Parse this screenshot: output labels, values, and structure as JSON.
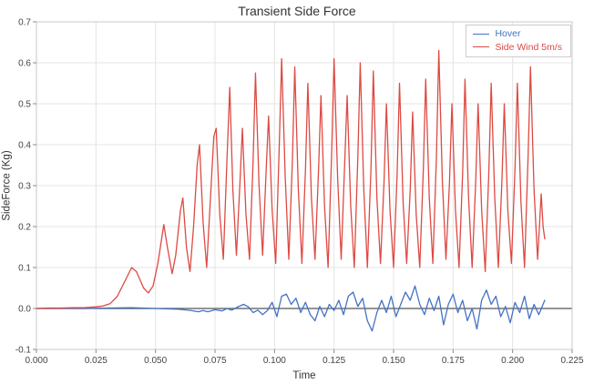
{
  "chart_data": {
    "type": "line",
    "title": "Transient Side Force",
    "xlabel": "Time",
    "ylabel": "SideForce (Kg)",
    "xlim": [
      0,
      0.225
    ],
    "ylim": [
      -0.1,
      0.7
    ],
    "grid": true,
    "zero_line": true,
    "legend_position": "top-right",
    "xticks": [
      0,
      0.025,
      0.05,
      0.075,
      0.1,
      0.125,
      0.15,
      0.175,
      0.2,
      0.225
    ],
    "xtick_labels": [
      "0.000",
      "0.025",
      "0.050",
      "0.075",
      "0.100",
      "0.125",
      "0.150",
      "0.175",
      "0.200",
      "0.225"
    ],
    "yticks": [
      -0.1,
      0,
      0.1,
      0.2,
      0.3,
      0.4,
      0.5,
      0.6,
      0.7
    ],
    "ytick_labels": [
      "-0.1",
      "0.0",
      "0.1",
      "0.2",
      "0.3",
      "0.4",
      "0.5",
      "0.6",
      "0.7"
    ],
    "colors": {
      "grid": "#e4e4e4",
      "spine": "#c8c8c8",
      "zero_line": "#555555",
      "tick": "#888888",
      "tick_label": "#444444"
    },
    "series": [
      {
        "name": "Hover",
        "color": "#4472c4",
        "points": [
          [
            0.0,
            0.0
          ],
          [
            0.01,
            0.0
          ],
          [
            0.02,
            0.0
          ],
          [
            0.03,
            0.001
          ],
          [
            0.04,
            0.002
          ],
          [
            0.05,
            0.0
          ],
          [
            0.06,
            -0.002
          ],
          [
            0.065,
            -0.005
          ],
          [
            0.068,
            -0.008
          ],
          [
            0.07,
            -0.005
          ],
          [
            0.072,
            -0.008
          ],
          [
            0.075,
            -0.003
          ],
          [
            0.078,
            -0.006
          ],
          [
            0.08,
            0.0
          ],
          [
            0.082,
            -0.004
          ],
          [
            0.085,
            0.005
          ],
          [
            0.087,
            0.01
          ],
          [
            0.089,
            0.004
          ],
          [
            0.091,
            -0.01
          ],
          [
            0.093,
            -0.004
          ],
          [
            0.095,
            -0.015
          ],
          [
            0.097,
            -0.005
          ],
          [
            0.099,
            0.015
          ],
          [
            0.101,
            -0.02
          ],
          [
            0.103,
            0.03
          ],
          [
            0.105,
            0.035
          ],
          [
            0.107,
            0.01
          ],
          [
            0.109,
            0.025
          ],
          [
            0.111,
            -0.01
          ],
          [
            0.113,
            0.015
          ],
          [
            0.115,
            -0.015
          ],
          [
            0.117,
            -0.03
          ],
          [
            0.119,
            0.005
          ],
          [
            0.121,
            -0.02
          ],
          [
            0.123,
            0.01
          ],
          [
            0.125,
            -0.005
          ],
          [
            0.127,
            0.02
          ],
          [
            0.129,
            -0.015
          ],
          [
            0.131,
            0.03
          ],
          [
            0.133,
            0.04
          ],
          [
            0.135,
            0.005
          ],
          [
            0.137,
            0.025
          ],
          [
            0.139,
            -0.03
          ],
          [
            0.141,
            -0.055
          ],
          [
            0.143,
            -0.01
          ],
          [
            0.145,
            0.02
          ],
          [
            0.147,
            -0.01
          ],
          [
            0.149,
            0.03
          ],
          [
            0.151,
            -0.02
          ],
          [
            0.153,
            0.01
          ],
          [
            0.155,
            0.04
          ],
          [
            0.157,
            0.02
          ],
          [
            0.159,
            0.055
          ],
          [
            0.161,
            0.01
          ],
          [
            0.163,
            -0.015
          ],
          [
            0.165,
            0.025
          ],
          [
            0.167,
            -0.005
          ],
          [
            0.169,
            0.03
          ],
          [
            0.171,
            -0.04
          ],
          [
            0.173,
            0.01
          ],
          [
            0.175,
            0.035
          ],
          [
            0.177,
            -0.01
          ],
          [
            0.179,
            0.02
          ],
          [
            0.181,
            -0.03
          ],
          [
            0.183,
            0.0
          ],
          [
            0.185,
            -0.05
          ],
          [
            0.187,
            0.02
          ],
          [
            0.189,
            0.045
          ],
          [
            0.191,
            0.01
          ],
          [
            0.193,
            0.03
          ],
          [
            0.195,
            -0.02
          ],
          [
            0.197,
            0.005
          ],
          [
            0.199,
            -0.035
          ],
          [
            0.201,
            0.015
          ],
          [
            0.203,
            -0.01
          ],
          [
            0.205,
            0.03
          ],
          [
            0.207,
            -0.025
          ],
          [
            0.209,
            0.01
          ],
          [
            0.211,
            -0.015
          ],
          [
            0.2135,
            0.02
          ]
        ]
      },
      {
        "name": "Side Wind 5m/s",
        "color": "#dd4a43",
        "points": [
          [
            0.0,
            0.0
          ],
          [
            0.005,
            0.001
          ],
          [
            0.01,
            0.001
          ],
          [
            0.015,
            0.002
          ],
          [
            0.02,
            0.002
          ],
          [
            0.025,
            0.004
          ],
          [
            0.028,
            0.006
          ],
          [
            0.031,
            0.012
          ],
          [
            0.034,
            0.03
          ],
          [
            0.037,
            0.065
          ],
          [
            0.04,
            0.1
          ],
          [
            0.042,
            0.09
          ],
          [
            0.045,
            0.05
          ],
          [
            0.047,
            0.038
          ],
          [
            0.049,
            0.055
          ],
          [
            0.051,
            0.11
          ],
          [
            0.0535,
            0.205
          ],
          [
            0.055,
            0.15
          ],
          [
            0.057,
            0.085
          ],
          [
            0.0585,
            0.13
          ],
          [
            0.0605,
            0.24
          ],
          [
            0.0615,
            0.27
          ],
          [
            0.063,
            0.15
          ],
          [
            0.0645,
            0.09
          ],
          [
            0.066,
            0.2
          ],
          [
            0.0675,
            0.35
          ],
          [
            0.0685,
            0.4
          ],
          [
            0.07,
            0.21
          ],
          [
            0.0715,
            0.1
          ],
          [
            0.073,
            0.26
          ],
          [
            0.0745,
            0.42
          ],
          [
            0.0755,
            0.44
          ],
          [
            0.077,
            0.23
          ],
          [
            0.0785,
            0.12
          ],
          [
            0.08,
            0.36
          ],
          [
            0.0812,
            0.54
          ],
          [
            0.0825,
            0.29
          ],
          [
            0.084,
            0.13
          ],
          [
            0.0855,
            0.31
          ],
          [
            0.0865,
            0.44
          ],
          [
            0.088,
            0.23
          ],
          [
            0.0895,
            0.12
          ],
          [
            0.091,
            0.36
          ],
          [
            0.092,
            0.575
          ],
          [
            0.0935,
            0.3
          ],
          [
            0.095,
            0.13
          ],
          [
            0.0965,
            0.34
          ],
          [
            0.0975,
            0.47
          ],
          [
            0.099,
            0.24
          ],
          [
            0.1005,
            0.11
          ],
          [
            0.102,
            0.4
          ],
          [
            0.103,
            0.61
          ],
          [
            0.1045,
            0.32
          ],
          [
            0.106,
            0.12
          ],
          [
            0.1075,
            0.36
          ],
          [
            0.1085,
            0.59
          ],
          [
            0.11,
            0.29
          ],
          [
            0.1115,
            0.11
          ],
          [
            0.113,
            0.34
          ],
          [
            0.114,
            0.55
          ],
          [
            0.1155,
            0.27
          ],
          [
            0.117,
            0.12
          ],
          [
            0.1185,
            0.34
          ],
          [
            0.1195,
            0.52
          ],
          [
            0.121,
            0.25
          ],
          [
            0.1225,
            0.1
          ],
          [
            0.124,
            0.38
          ],
          [
            0.125,
            0.61
          ],
          [
            0.1265,
            0.32
          ],
          [
            0.128,
            0.12
          ],
          [
            0.1295,
            0.36
          ],
          [
            0.1305,
            0.52
          ],
          [
            0.132,
            0.25
          ],
          [
            0.1335,
            0.1
          ],
          [
            0.135,
            0.37
          ],
          [
            0.136,
            0.6
          ],
          [
            0.1375,
            0.29
          ],
          [
            0.139,
            0.1
          ],
          [
            0.1405,
            0.34
          ],
          [
            0.1415,
            0.58
          ],
          [
            0.143,
            0.27
          ],
          [
            0.1445,
            0.11
          ],
          [
            0.146,
            0.31
          ],
          [
            0.147,
            0.5
          ],
          [
            0.1485,
            0.24
          ],
          [
            0.15,
            0.1
          ],
          [
            0.1515,
            0.33
          ],
          [
            0.1525,
            0.55
          ],
          [
            0.154,
            0.26
          ],
          [
            0.1555,
            0.11
          ],
          [
            0.157,
            0.29
          ],
          [
            0.158,
            0.48
          ],
          [
            0.1595,
            0.23
          ],
          [
            0.161,
            0.1
          ],
          [
            0.1625,
            0.34
          ],
          [
            0.1635,
            0.56
          ],
          [
            0.165,
            0.27
          ],
          [
            0.1665,
            0.11
          ],
          [
            0.168,
            0.37
          ],
          [
            0.169,
            0.63
          ],
          [
            0.1705,
            0.31
          ],
          [
            0.172,
            0.12
          ],
          [
            0.1735,
            0.31
          ],
          [
            0.1745,
            0.5
          ],
          [
            0.176,
            0.24
          ],
          [
            0.1775,
            0.1
          ],
          [
            0.179,
            0.33
          ],
          [
            0.18,
            0.56
          ],
          [
            0.1815,
            0.27
          ],
          [
            0.183,
            0.1
          ],
          [
            0.1845,
            0.31
          ],
          [
            0.1855,
            0.5
          ],
          [
            0.187,
            0.24
          ],
          [
            0.1885,
            0.09
          ],
          [
            0.19,
            0.33
          ],
          [
            0.191,
            0.55
          ],
          [
            0.1925,
            0.27
          ],
          [
            0.194,
            0.1
          ],
          [
            0.1955,
            0.31
          ],
          [
            0.1965,
            0.5
          ],
          [
            0.198,
            0.24
          ],
          [
            0.1995,
            0.11
          ],
          [
            0.201,
            0.34
          ],
          [
            0.202,
            0.55
          ],
          [
            0.2035,
            0.26
          ],
          [
            0.205,
            0.1
          ],
          [
            0.2065,
            0.37
          ],
          [
            0.2075,
            0.59
          ],
          [
            0.209,
            0.29
          ],
          [
            0.2105,
            0.12
          ],
          [
            0.212,
            0.28
          ],
          [
            0.2128,
            0.2
          ],
          [
            0.2135,
            0.17
          ]
        ]
      }
    ]
  }
}
